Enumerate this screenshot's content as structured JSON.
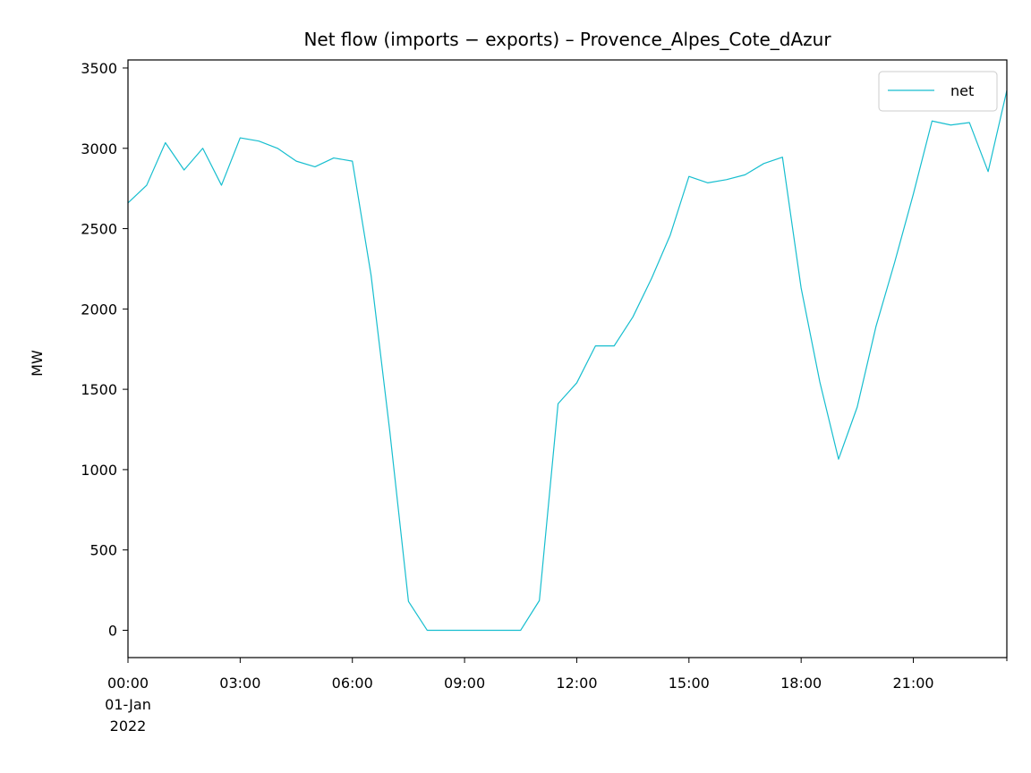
{
  "chart_data": {
    "type": "line",
    "title": "Net flow (imports − exports) – Provence_Alpes_Cote_dAzur",
    "xlabel": "",
    "ylabel": "MW",
    "ylim": [
      -170,
      3550
    ],
    "xlim": [
      "2022-01-01 00:00",
      "2022-01-01 23:30"
    ],
    "yticks": [
      0,
      500,
      1000,
      1500,
      2000,
      2500,
      3000,
      3500
    ],
    "xticks": [
      {
        "x": "2022-01-01 00:00",
        "lines": [
          "00:00",
          "01-Jan",
          "2022"
        ]
      },
      {
        "x": "2022-01-01 03:00",
        "lines": [
          "03:00"
        ]
      },
      {
        "x": "2022-01-01 06:00",
        "lines": [
          "06:00"
        ]
      },
      {
        "x": "2022-01-01 09:00",
        "lines": [
          "09:00"
        ]
      },
      {
        "x": "2022-01-01 12:00",
        "lines": [
          "12:00"
        ]
      },
      {
        "x": "2022-01-01 15:00",
        "lines": [
          "15:00"
        ]
      },
      {
        "x": "2022-01-01 18:00",
        "lines": [
          "18:00"
        ]
      },
      {
        "x": "2022-01-01 21:00",
        "lines": [
          "21:00"
        ]
      }
    ],
    "grid": false,
    "legend": {
      "position": "top-right",
      "entries": [
        "net"
      ]
    },
    "series": [
      {
        "name": "net",
        "color": "#17becf",
        "x": [
          "00:00",
          "00:30",
          "01:00",
          "01:30",
          "02:00",
          "02:30",
          "03:00",
          "03:30",
          "04:00",
          "04:30",
          "05:00",
          "05:30",
          "06:00",
          "06:30",
          "07:00",
          "07:30",
          "08:00",
          "08:30",
          "09:00",
          "09:30",
          "10:00",
          "10:30",
          "11:00",
          "11:30",
          "12:00",
          "12:30",
          "13:00",
          "13:30",
          "14:00",
          "14:30",
          "15:00",
          "15:30",
          "16:00",
          "16:30",
          "17:00",
          "17:30",
          "18:00",
          "18:30",
          "19:00",
          "19:30",
          "20:00",
          "20:30",
          "21:00",
          "21:30",
          "22:00",
          "22:30",
          "23:00",
          "23:30"
        ],
        "values": [
          2660,
          2770,
          3035,
          2865,
          3000,
          2770,
          3065,
          3045,
          3000,
          2920,
          2885,
          2940,
          2920,
          2210,
          1240,
          180,
          0,
          0,
          0,
          0,
          0,
          0,
          185,
          1410,
          1540,
          1770,
          1770,
          1950,
          2190,
          2460,
          2825,
          2785,
          2805,
          2835,
          2905,
          2945,
          2130,
          1545,
          1065,
          1390,
          1890,
          2290,
          2715,
          3170,
          3145,
          3160,
          2855,
          3360
        ]
      }
    ]
  }
}
